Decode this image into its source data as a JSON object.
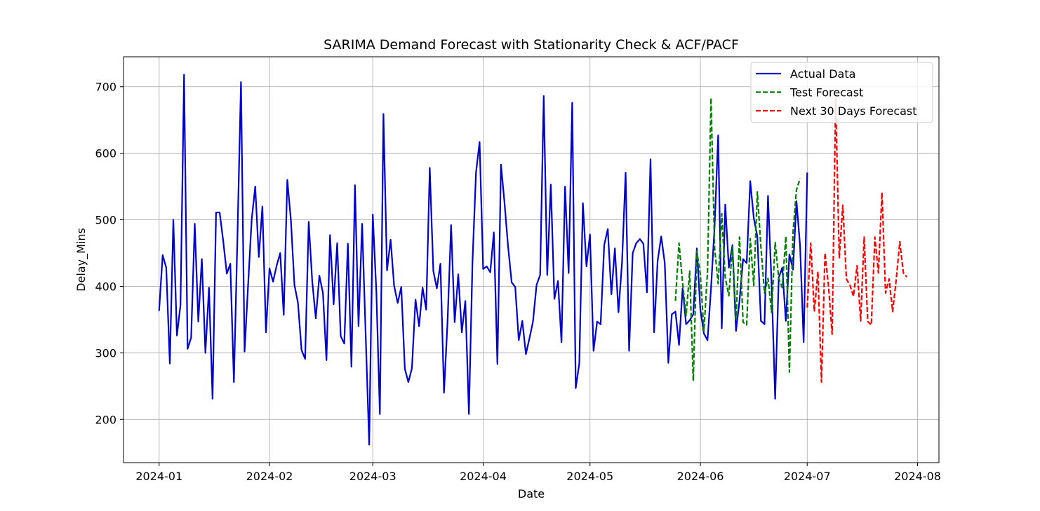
{
  "chart_data": {
    "type": "line",
    "title": "SARIMA Demand Forecast with Stationarity Check & ACF/PACF",
    "xlabel": "Date",
    "ylabel": "Delay_Mins",
    "xlim": [
      "2023-12-22",
      "2024-08-07"
    ],
    "ylim": [
      135,
      745
    ],
    "x_ticks": [
      "2024-01-01",
      "2024-02-01",
      "2024-03-01",
      "2024-04-01",
      "2024-05-01",
      "2024-06-01",
      "2024-07-01",
      "2024-08-01"
    ],
    "x_tick_labels": [
      "2024-01",
      "2024-02",
      "2024-03",
      "2024-04",
      "2024-05",
      "2024-06",
      "2024-07",
      "2024-08"
    ],
    "y_ticks": [
      200,
      300,
      400,
      500,
      600,
      700
    ],
    "grid": true,
    "legend_position": "top-right",
    "series": [
      {
        "name": "Actual Data",
        "color": "#0000cc",
        "style": "solid",
        "start": "2024-01-01",
        "values": [
          363,
          447,
          428,
          284,
          500,
          326,
          372,
          718,
          306,
          323,
          494,
          347,
          441,
          300,
          398,
          231,
          511,
          511,
          468,
          419,
          434,
          256,
          477,
          707,
          302,
          403,
          501,
          550,
          444,
          520,
          331,
          427,
          407,
          431,
          450,
          357,
          560,
          500,
          402,
          375,
          304,
          291,
          497,
          408,
          352,
          416,
          390,
          289,
          477,
          373,
          465,
          325,
          314,
          464,
          279,
          552,
          340,
          494,
          330,
          162,
          508,
          392,
          208,
          659,
          424,
          470,
          401,
          375,
          399,
          276,
          256,
          277,
          380,
          340,
          398,
          365,
          578,
          423,
          397,
          434,
          240,
          348,
          492,
          346,
          418,
          331,
          378,
          208,
          437,
          571,
          617,
          426,
          430,
          421,
          481,
          283,
          583,
          526,
          460,
          406,
          399,
          319,
          348,
          298,
          322,
          347,
          402,
          417,
          686,
          417,
          553,
          381,
          408,
          316,
          550,
          420,
          676,
          247,
          284,
          525,
          430,
          478,
          303,
          347,
          343,
          462,
          486,
          388,
          457,
          361,
          436,
          571,
          303,
          450,
          465,
          471,
          464,
          391,
          591,
          331,
          438,
          475,
          435,
          285,
          358,
          362,
          312,
          397,
          343,
          349,
          358,
          457,
          365,
          329,
          319,
          397,
          490,
          627,
          337,
          523,
          428,
          462,
          333,
          378,
          441,
          435,
          558,
          503,
          475,
          348,
          343,
          536,
          404,
          231,
          413,
          428,
          348,
          448,
          425,
          528,
          461,
          316,
          571
        ]
      },
      {
        "name": "Test Forecast",
        "color": "#007f00",
        "style": "dashed",
        "start": "2024-05-25",
        "values": [
          378,
          465,
          405,
          356,
          423,
          258,
          453,
          418,
          333,
          422,
          683,
          458,
          404,
          509,
          413,
          386,
          460,
          351,
          474,
          346,
          342,
          472,
          401,
          542,
          459,
          390,
          412,
          361,
          466,
          412,
          398,
          475,
          271,
          481,
          545,
          562
        ]
      },
      {
        "name": "Next 30 Days Forecast",
        "color": "#ff0000",
        "style": "dashed",
        "start": "2024-07-01",
        "values": [
          368,
          465,
          362,
          422,
          256,
          450,
          399,
          328,
          683,
          443,
          522,
          411,
          402,
          385,
          431,
          348,
          474,
          347,
          342,
          474,
          420,
          541,
          390,
          411,
          362,
          410,
          467,
          420,
          414
        ]
      }
    ]
  }
}
